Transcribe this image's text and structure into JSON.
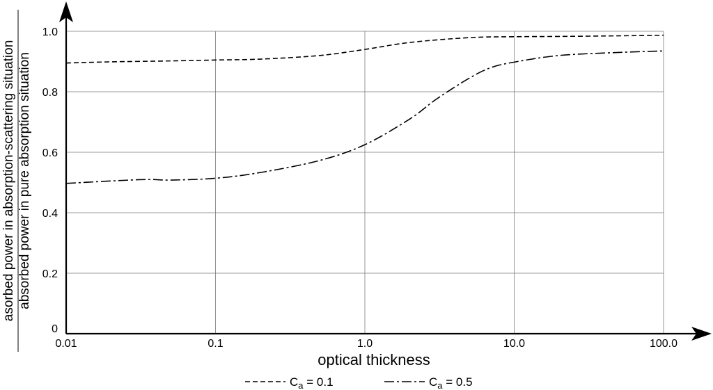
{
  "chart_data": {
    "type": "line",
    "xlabel": "optical thickness",
    "ylabel_numerator": "asorbed power in absorption-scattering situation",
    "ylabel_denominator": "absorbed power in pure absorption situation",
    "x_scale": "log",
    "xlim": [
      0.01,
      100
    ],
    "ylim": [
      0,
      1.0
    ],
    "x_ticks": [
      0.01,
      0.1,
      1,
      10,
      100
    ],
    "x_tick_labels": [
      "0.01",
      "0.1",
      "1.0",
      "10.0",
      "100.0"
    ],
    "y_ticks": [
      0,
      0.2,
      0.4,
      0.6,
      0.8,
      1.0
    ],
    "y_tick_labels": [
      "0",
      "0.2",
      "0.4",
      "0.6",
      "0.8",
      "1.0"
    ],
    "grid": true,
    "legend_position": "bottom-center",
    "series": [
      {
        "name": "Ca = 0.1",
        "legend_main": "C",
        "legend_sub": "a",
        "legend_rest": " = 0.1",
        "dash": "dashed",
        "x": [
          0.01,
          0.02,
          0.05,
          0.1,
          0.2,
          0.5,
          1,
          2,
          5,
          10,
          20,
          50,
          100
        ],
        "y": [
          0.895,
          0.899,
          0.902,
          0.905,
          0.908,
          0.92,
          0.94,
          0.963,
          0.979,
          0.982,
          0.983,
          0.985,
          0.987
        ]
      },
      {
        "name": "Ca = 0.5",
        "legend_main": "C",
        "legend_sub": "a",
        "legend_rest": " = 0.5",
        "dash": "dash-dot",
        "x": [
          0.01,
          0.02,
          0.035,
          0.05,
          0.1,
          0.2,
          0.5,
          1,
          2,
          3,
          5,
          7,
          10,
          20,
          50,
          100
        ],
        "y": [
          0.497,
          0.505,
          0.51,
          0.508,
          0.514,
          0.533,
          0.573,
          0.625,
          0.71,
          0.775,
          0.845,
          0.88,
          0.898,
          0.92,
          0.93,
          0.935
        ]
      }
    ]
  }
}
